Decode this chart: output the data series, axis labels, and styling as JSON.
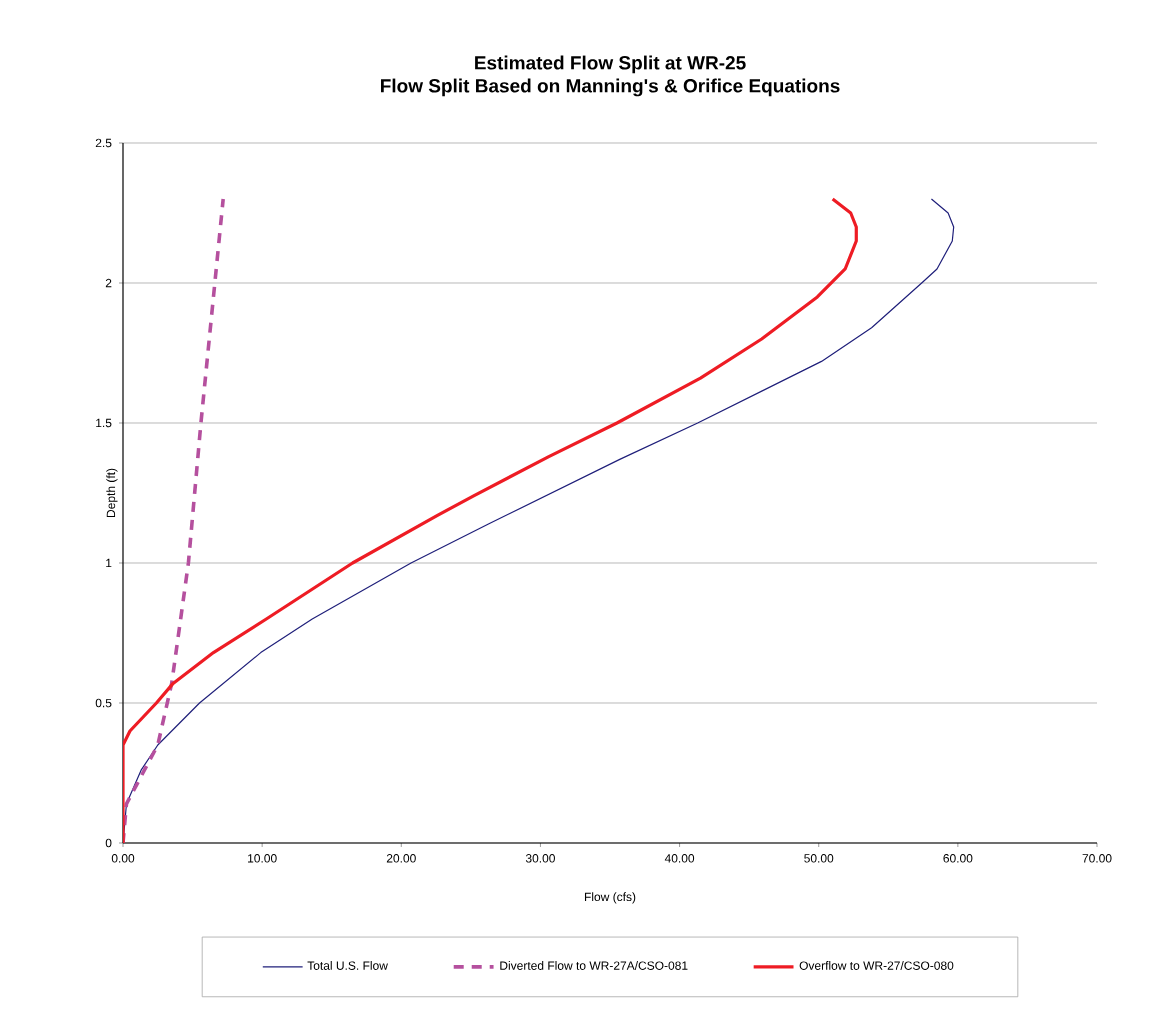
{
  "chart_data": {
    "type": "line",
    "title": "Estimated Flow Split at WR-25",
    "subtitle": "Flow Split Based on Manning's & Orifice Equations",
    "xlabel": "Flow (cfs)",
    "ylabel": "Depth (ft)",
    "xlim": [
      0,
      70
    ],
    "ylim": [
      0,
      2.5
    ],
    "xticks": [
      {
        "value": 0,
        "label": "0.00"
      },
      {
        "value": 10,
        "label": "10.00"
      },
      {
        "value": 20,
        "label": "20.00"
      },
      {
        "value": 30,
        "label": "30.00"
      },
      {
        "value": 40,
        "label": "40.00"
      },
      {
        "value": 50,
        "label": "50.00"
      },
      {
        "value": 60,
        "label": "60.00"
      },
      {
        "value": 70,
        "label": "70.00"
      }
    ],
    "yticks": [
      0,
      0.5,
      1,
      1.5,
      2,
      2.5
    ],
    "grid": "y",
    "legend": "bottom",
    "marker": "none",
    "series": [
      {
        "name": "Total U.S. Flow",
        "color": "#1f1f7a",
        "line_style": "solid",
        "x": [
          0,
          0.25,
          1.3,
          2.5,
          5.5,
          9.9,
          13.6,
          20.7,
          26.3,
          35.7,
          41.3,
          50.2,
          53.8,
          57.4,
          58.5,
          59.6,
          59.7,
          59.3,
          58.1
        ],
        "values": [
          0,
          0.14,
          0.26,
          0.35,
          0.5,
          0.68,
          0.8,
          1.0,
          1.14,
          1.37,
          1.5,
          1.72,
          1.84,
          2.0,
          2.05,
          2.15,
          2.2,
          2.25,
          2.3
        ]
      },
      {
        "name": "Diverted Flow to WR-27A/CSO-081",
        "color": "#b5509e",
        "line_style": "dashed",
        "x": [
          0,
          0.25,
          2.5,
          3.5,
          4.7,
          5.6,
          6.6,
          7.2
        ],
        "values": [
          0,
          0.14,
          0.35,
          0.57,
          1.0,
          1.5,
          2.0,
          2.3
        ]
      },
      {
        "name": "Overflow to WR-27/CSO-080",
        "color": "#ee1c24",
        "line_style": "solid",
        "x": [
          0,
          0,
          0.5,
          2.4,
          3.6,
          6.5,
          10.3,
          16.5,
          22.6,
          25.2,
          30.6,
          35.5,
          41.5,
          45.9,
          49.9,
          50.9,
          51.9,
          52.7,
          52.7,
          52.3,
          51.0
        ],
        "values": [
          0,
          0.35,
          0.4,
          0.5,
          0.57,
          0.68,
          0.8,
          1.0,
          1.17,
          1.24,
          1.38,
          1.5,
          1.66,
          1.8,
          1.95,
          2.0,
          2.05,
          2.15,
          2.2,
          2.25,
          2.3
        ]
      }
    ]
  }
}
